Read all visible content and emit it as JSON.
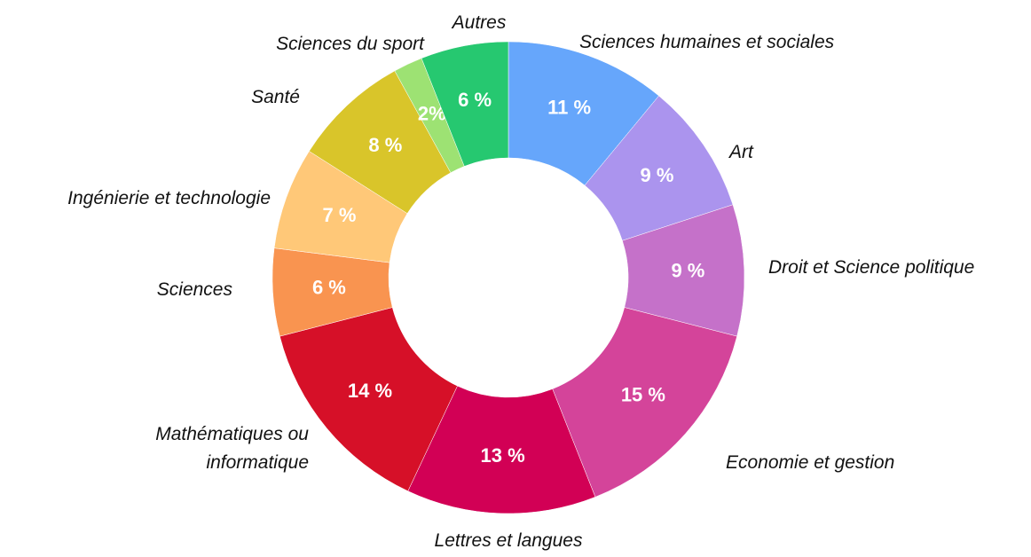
{
  "chart_data": {
    "type": "donut",
    "categories": [
      "Sciences humaines et sociales",
      "Art",
      "Droit et Science politique",
      "Economie et gestion",
      "Lettres et langues",
      "Mathématiques ou informatique",
      "Sciences",
      "Ingénierie et technologie",
      "Santé",
      "Sciences du sport",
      "Autres"
    ],
    "values": [
      11,
      9,
      9,
      15,
      13,
      14,
      6,
      7,
      8,
      2,
      6
    ],
    "value_labels": [
      "11 %",
      "9 %",
      "9 %",
      "15 %",
      "13 %",
      "14 %",
      "6 %",
      "7 %",
      "8 %",
      "2%",
      "6 %"
    ],
    "colors": [
      "#66a6fb",
      "#ab94ee",
      "#c571c9",
      "#d4449a",
      "#d20055",
      "#d61028",
      "#f99450",
      "#ffc878",
      "#d9c52a",
      "#9de273",
      "#26c870"
    ]
  }
}
